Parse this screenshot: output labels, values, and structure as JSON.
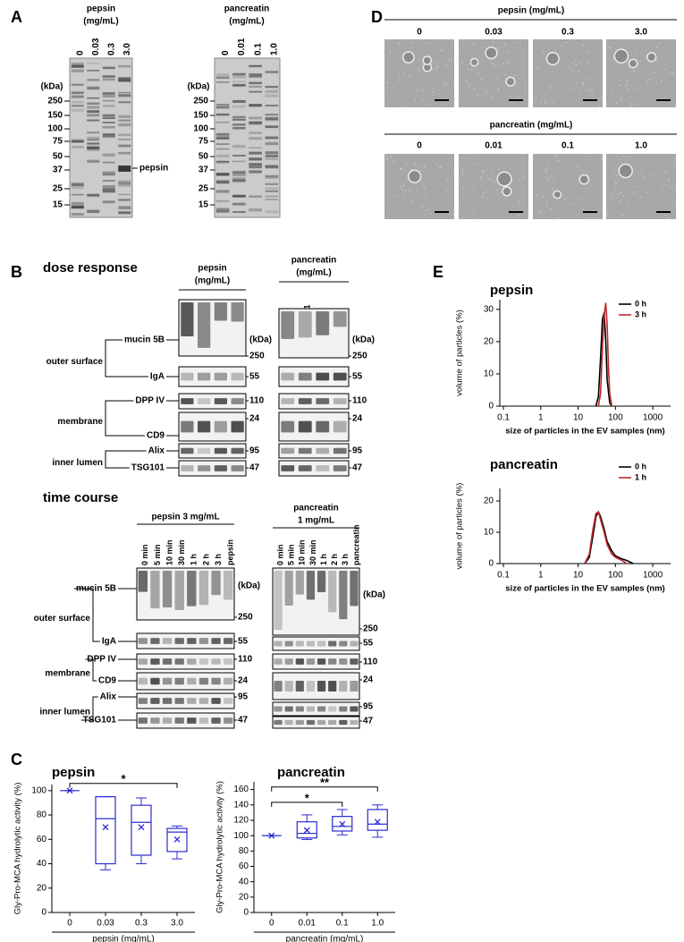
{
  "panel_labels": [
    "A",
    "B",
    "C",
    "D",
    "E"
  ],
  "panel_a": {
    "gels": [
      {
        "title": [
          "pepsin",
          "(mg/mL)"
        ],
        "lanes": [
          "0",
          "0.03",
          "0.3",
          "3.0"
        ],
        "unit": "(kDa)",
        "markers": [
          "250",
          "150",
          "100",
          "75",
          "50",
          "37",
          "25",
          "15"
        ],
        "annotation": "pepsin"
      },
      {
        "title": [
          "pancreatin",
          "(mg/mL)"
        ],
        "lanes": [
          "0",
          "0.01",
          "0.1",
          "1.0"
        ],
        "unit": "(kDa)",
        "markers": [
          "250",
          "150",
          "100",
          "75",
          "50",
          "37",
          "25",
          "15"
        ]
      }
    ]
  },
  "panel_d": {
    "rows": [
      {
        "title": "pepsin (mg/mL)",
        "lanes": [
          "0",
          "0.03",
          "0.3",
          "3.0"
        ]
      },
      {
        "title": "pancreatin (mg/mL)",
        "lanes": [
          "0",
          "0.01",
          "0.1",
          "1.0"
        ]
      }
    ]
  },
  "panel_b": {
    "sections": [
      {
        "title": "dose response",
        "blots": [
          {
            "title": [
              "pepsin",
              "(mg/mL)"
            ],
            "lanes": [
              "0",
              "0.03",
              "0.3",
              "3.0"
            ]
          },
          {
            "title": [
              "pancreatin",
              "(mg/mL)"
            ],
            "lanes": [
              "0",
              "0.01",
              "0.1",
              "1.0"
            ]
          }
        ],
        "groups": [
          "outer surface",
          "membrane",
          "inner lumen"
        ],
        "proteins": [
          "mucin 5B",
          "IgA",
          "DPP IV",
          "CD9",
          "Alix",
          "TSG101"
        ],
        "kda_unit": "(kDa)",
        "kda": [
          "250",
          "55",
          "110",
          "24",
          "95",
          "47"
        ]
      },
      {
        "title": "time course",
        "blots": [
          {
            "title": [
              "pepsin 3 mg/mL"
            ],
            "lanes": [
              "0 min",
              "5 min",
              "10 min",
              "30 min",
              "1 h",
              "2 h",
              "3 h",
              "pepsin"
            ]
          },
          {
            "title": [
              "pancreatin",
              "1 mg/mL"
            ],
            "lanes": [
              "0 min",
              "5 min",
              "10 min",
              "30 min",
              "1 h",
              "2 h",
              "3 h",
              "pancreatin"
            ]
          }
        ],
        "groups": [
          "outer surface",
          "membrane",
          "inner lumen"
        ],
        "proteins": [
          "mucin 5B",
          "IgA",
          "DPP IV",
          "CD9",
          "Alix",
          "TSG101"
        ],
        "kda_unit": "(kDa)",
        "kda": [
          "250",
          "55",
          "110",
          "24",
          "95",
          "47"
        ]
      }
    ]
  },
  "chart_data": [
    {
      "type": "box",
      "title": "pepsin",
      "y_label": "Gly-Pro-MCA hydrolytic activity (%)",
      "x_label": "pepsin (mg/mL)",
      "categories": [
        "0",
        "0.03",
        "0.3",
        "3.0"
      ],
      "color": "#2b2bd6",
      "values": [
        {
          "min": 100,
          "q1": 100,
          "median": 100,
          "q3": 100,
          "max": 100,
          "mean": 100
        },
        {
          "min": 35,
          "q1": 40,
          "median": 77,
          "q3": 95,
          "max": 95,
          "mean": 70
        },
        {
          "min": 40,
          "q1": 47,
          "median": 74,
          "q3": 88,
          "max": 94,
          "mean": 70
        },
        {
          "min": 44,
          "q1": 50,
          "median": 66,
          "q3": 69,
          "max": 71,
          "mean": 60
        }
      ],
      "ylim": [
        0,
        105
      ],
      "yticks": [
        0,
        20,
        40,
        60,
        80,
        100
      ],
      "significance": [
        {
          "label": "*",
          "between": [
            "0",
            "3.0"
          ]
        }
      ]
    },
    {
      "type": "box",
      "title": "pancreatin",
      "y_label": "Gly-Pro-MCA hydrolytic activity (%)",
      "x_label": "pancreatin (mg/mL)",
      "categories": [
        "0",
        "0.01",
        "0.1",
        "1.0"
      ],
      "color": "#2b2bd6",
      "values": [
        {
          "min": 100,
          "q1": 100,
          "median": 100,
          "q3": 100,
          "max": 100,
          "mean": 100
        },
        {
          "min": 95,
          "q1": 97,
          "median": 103,
          "q3": 118,
          "max": 127,
          "mean": 107
        },
        {
          "min": 101,
          "q1": 106,
          "median": 112,
          "q3": 125,
          "max": 134,
          "mean": 115
        },
        {
          "min": 98,
          "q1": 107,
          "median": 115,
          "q3": 134,
          "max": 140,
          "mean": 118
        }
      ],
      "ylim": [
        0,
        170
      ],
      "yticks": [
        0,
        20,
        40,
        60,
        80,
        100,
        120,
        140,
        160
      ],
      "significance": [
        {
          "label": "*",
          "between": [
            "0",
            "0.1"
          ]
        },
        {
          "label": "**",
          "between": [
            "0",
            "1.0"
          ]
        }
      ]
    },
    {
      "type": "line",
      "title": "pepsin",
      "y_label": "volume of particles (%)",
      "x_label": "size of particles in the EV samples (nm)",
      "log_x": true,
      "xlim": [
        0.08,
        3000
      ],
      "xticks": [
        0.1,
        1,
        10,
        100,
        1000
      ],
      "ylim": [
        0,
        33
      ],
      "yticks": [
        0,
        10,
        20,
        30
      ],
      "legend": "upper right",
      "series": [
        {
          "name": "0 h",
          "color": "#000000",
          "x": [
            30,
            35,
            40,
            45,
            50,
            55,
            60,
            70,
            80
          ],
          "values": [
            0,
            3,
            15,
            27,
            29,
            20,
            8,
            1,
            0
          ]
        },
        {
          "name": "3 h",
          "color": "#c0282d",
          "x": [
            35,
            40,
            45,
            50,
            55,
            60,
            65,
            70,
            80
          ],
          "values": [
            0,
            4,
            18,
            28,
            32,
            25,
            12,
            4,
            0
          ]
        }
      ]
    },
    {
      "type": "line",
      "title": "pancreatin",
      "y_label": "volume of particles (%)",
      "x_label": "size of particles in the EV samples (nm)",
      "log_x": true,
      "xlim": [
        0.08,
        3000
      ],
      "xticks": [
        0.1,
        1,
        10,
        100,
        1000
      ],
      "ylim": [
        0,
        24
      ],
      "yticks": [
        0,
        10,
        20
      ],
      "legend": "upper right",
      "series": [
        {
          "name": "0 h",
          "color": "#000000",
          "x": [
            15,
            20,
            25,
            30,
            35,
            40,
            50,
            60,
            80,
            100,
            150,
            200,
            300
          ],
          "values": [
            0,
            2,
            9,
            15,
            16.5,
            15,
            11,
            7,
            4,
            2.5,
            1.5,
            1,
            0
          ]
        },
        {
          "name": "1 h",
          "color": "#c0282d",
          "x": [
            15,
            20,
            25,
            30,
            35,
            40,
            50,
            60,
            80,
            100,
            150,
            200
          ],
          "values": [
            0,
            3,
            11,
            16,
            16.5,
            14,
            10,
            6,
            3,
            2,
            1,
            0
          ]
        }
      ]
    }
  ]
}
